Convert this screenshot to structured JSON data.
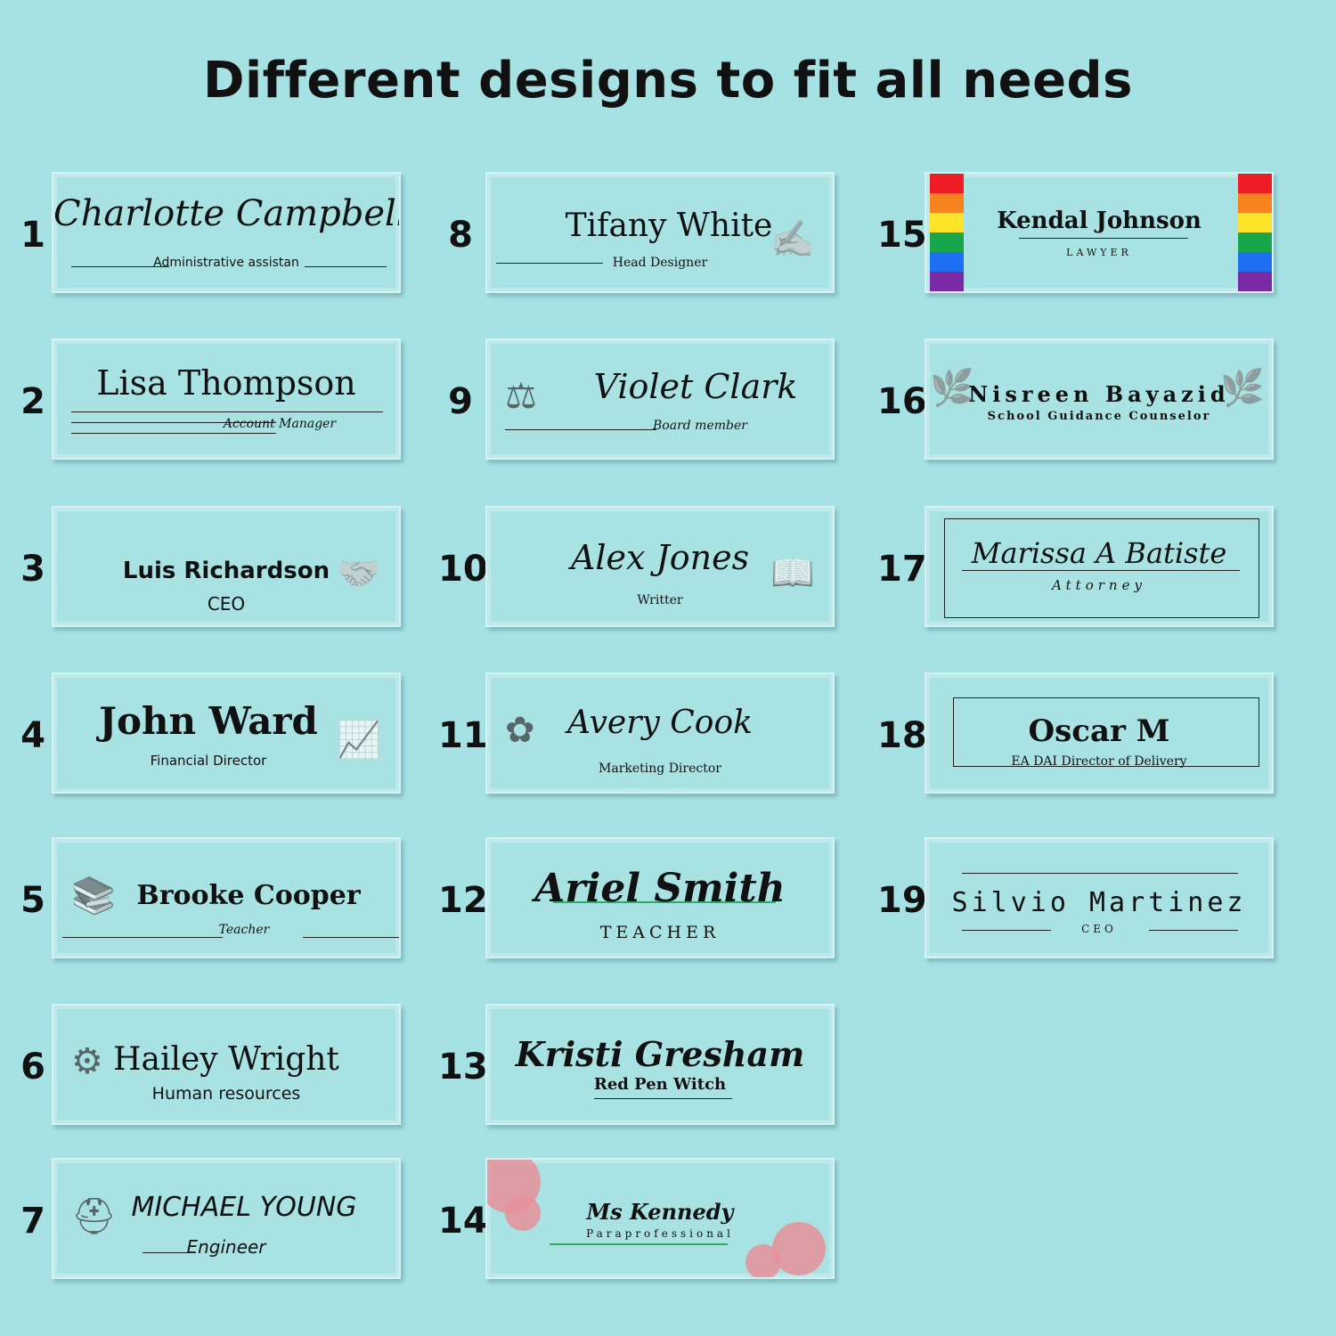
{
  "heading": "Different designs to fit all needs",
  "plates": [
    {
      "number": "1",
      "name": "Charlotte Campbell",
      "title": "Administrative assistan"
    },
    {
      "number": "2",
      "name": "Lisa Thompson",
      "title": "Account Manager"
    },
    {
      "number": "3",
      "name": "Luis Richardson",
      "title": "CEO",
      "icon": "handshake-icon"
    },
    {
      "number": "4",
      "name": "John Ward",
      "title": "Financial Director",
      "icon": "growth-chart-icon"
    },
    {
      "number": "5",
      "name": "Brooke Cooper",
      "title": "Teacher",
      "icon": "books-apple-icon"
    },
    {
      "number": "6",
      "name": "Hailey Wright",
      "title": "Human resources",
      "icon": "people-gear-icon"
    },
    {
      "number": "7",
      "name": "MICHAEL YOUNG",
      "title": "Engineer",
      "icon": "hard-hat-icon"
    },
    {
      "number": "8",
      "name": "Tifany White",
      "title": "Head Designer",
      "icon": "hand-pen-icon"
    },
    {
      "number": "9",
      "name": "Violet Clark",
      "title": "Board member",
      "icon": "scales-icon"
    },
    {
      "number": "10",
      "name": "Alex Jones",
      "title": "Writter",
      "icon": "book-icon"
    },
    {
      "number": "11",
      "name": "Avery Cook",
      "title": "Marketing Director",
      "icon": "flower-icon"
    },
    {
      "number": "12",
      "name": "Ariel Smith",
      "title": "TEACHER"
    },
    {
      "number": "13",
      "name": "Kristi Gresham",
      "title": "Red Pen Witch"
    },
    {
      "number": "14",
      "name": "Ms Kennedy",
      "title": "Paraprofessional",
      "icon": "floral-icon"
    },
    {
      "number": "15",
      "name": "Kendal Johnson",
      "title": "LAWYER",
      "rainbow": [
        "#ee1c24",
        "#f7821e",
        "#fde428",
        "#1aa64a",
        "#1f6ff2",
        "#7b2aa6"
      ]
    },
    {
      "number": "16",
      "name": "Nisreen Bayazid",
      "title": "School Guidance Counselor",
      "icon": "leaf-branch-icon"
    },
    {
      "number": "17",
      "name": "Marissa A Batiste",
      "title": "Attorney"
    },
    {
      "number": "18",
      "name": "Oscar M",
      "title": "EA DAI Director of Delivery"
    },
    {
      "number": "19",
      "name": "Silvio Martinez",
      "title": "CEO"
    }
  ],
  "colors": {
    "background": "#a6e1e4",
    "accent_green": "#2eaa6a",
    "flower_pink": "#e8909a"
  }
}
